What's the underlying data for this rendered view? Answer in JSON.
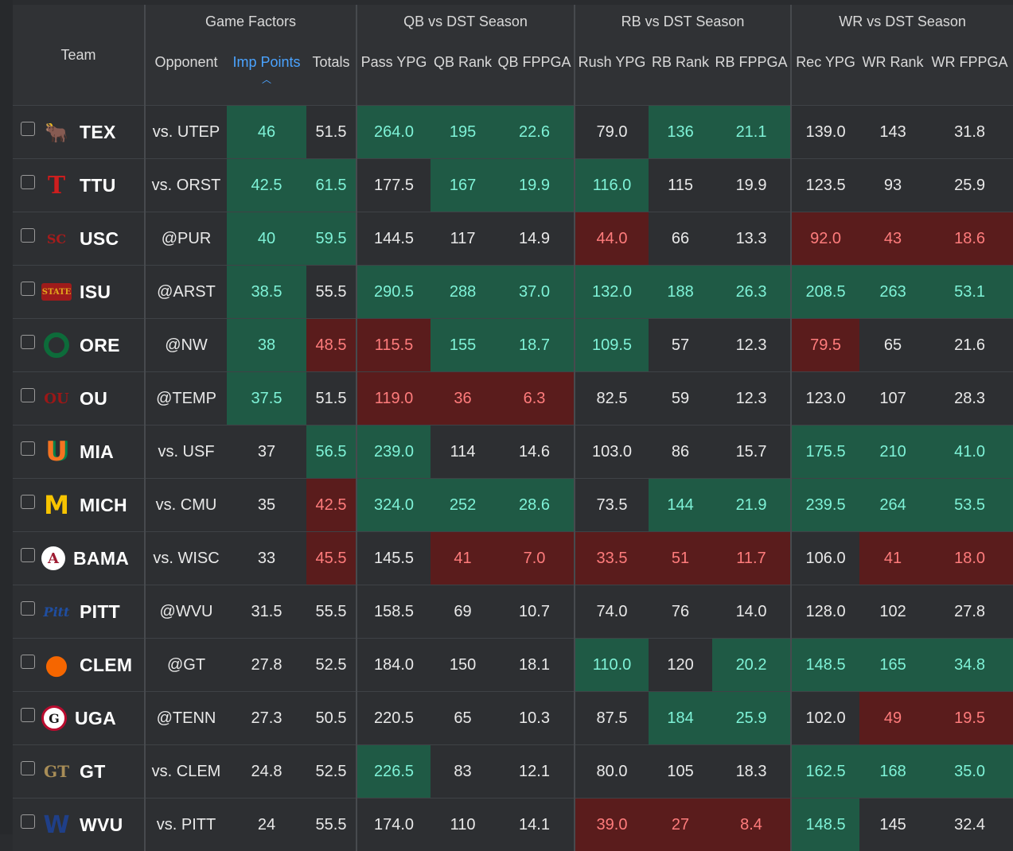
{
  "header": {
    "team": "Team",
    "groups": [
      "Game Factors",
      "QB vs DST Season",
      "RB vs DST Season",
      "WR vs DST Season"
    ],
    "columns": [
      "Opponent",
      "Imp Points",
      "Totals",
      "Pass YPG",
      "QB Rank",
      "QB FPPGA",
      "Rush YPG",
      "RB Rank",
      "RB FPPGA",
      "Rec YPG",
      "WR Rank",
      "WR FPPGA"
    ],
    "sort_column": "Imp Points",
    "sort_direction": "descending"
  },
  "colors": {
    "green_cell": "#1f5a45",
    "green_text": "#7ff3d8",
    "red_cell": "#5a1c1c",
    "red_text": "#ff7c7c",
    "active_header": "#4aa3ff"
  },
  "rows": [
    {
      "team": "TEX",
      "logo": "longhorn-logo-icon",
      "cells": [
        "vs. UTEP",
        "46",
        "51.5",
        "264.0",
        "195",
        "22.6",
        "79.0",
        "136",
        "21.1",
        "139.0",
        "143",
        "31.8"
      ],
      "tint": [
        "",
        "g",
        "",
        "g",
        "g",
        "g",
        "",
        "g",
        "g",
        "",
        "",
        ""
      ]
    },
    {
      "team": "TTU",
      "logo": "double-t-logo-icon",
      "cells": [
        "vs. ORST",
        "42.5",
        "61.5",
        "177.5",
        "167",
        "19.9",
        "116.0",
        "115",
        "19.9",
        "123.5",
        "93",
        "25.9"
      ],
      "tint": [
        "",
        "g",
        "g",
        "",
        "g",
        "g",
        "g",
        "",
        "",
        "",
        "",
        ""
      ]
    },
    {
      "team": "USC",
      "logo": "sc-logo-icon",
      "cells": [
        "@PUR",
        "40",
        "59.5",
        "144.5",
        "117",
        "14.9",
        "44.0",
        "66",
        "13.3",
        "92.0",
        "43",
        "18.6"
      ],
      "tint": [
        "",
        "g",
        "g",
        "",
        "",
        "",
        "r",
        "",
        "",
        "r",
        "r",
        "r"
      ]
    },
    {
      "team": "ISU",
      "logo": "isu-state-logo-icon",
      "cells": [
        "@ARST",
        "38.5",
        "55.5",
        "290.5",
        "288",
        "37.0",
        "132.0",
        "188",
        "26.3",
        "208.5",
        "263",
        "53.1"
      ],
      "tint": [
        "",
        "g",
        "",
        "g",
        "g",
        "g",
        "g",
        "g",
        "g",
        "g",
        "g",
        "g"
      ]
    },
    {
      "team": "ORE",
      "logo": "o-logo-icon",
      "cells": [
        "@NW",
        "38",
        "48.5",
        "115.5",
        "155",
        "18.7",
        "109.5",
        "57",
        "12.3",
        "79.5",
        "65",
        "21.6"
      ],
      "tint": [
        "",
        "g",
        "r",
        "r",
        "g",
        "g",
        "g",
        "",
        "",
        "r",
        "",
        ""
      ]
    },
    {
      "team": "OU",
      "logo": "ou-logo-icon",
      "cells": [
        "@TEMP",
        "37.5",
        "51.5",
        "119.0",
        "36",
        "6.3",
        "82.5",
        "59",
        "12.3",
        "123.0",
        "107",
        "28.3"
      ],
      "tint": [
        "",
        "g",
        "",
        "r",
        "r",
        "r",
        "",
        "",
        "",
        "",
        "",
        ""
      ]
    },
    {
      "team": "MIA",
      "logo": "u-logo-icon",
      "cells": [
        "vs. USF",
        "37",
        "56.5",
        "239.0",
        "114",
        "14.6",
        "103.0",
        "86",
        "15.7",
        "175.5",
        "210",
        "41.0"
      ],
      "tint": [
        "",
        "",
        "g",
        "g",
        "",
        "",
        "",
        "",
        "",
        "g",
        "g",
        "g"
      ]
    },
    {
      "team": "MICH",
      "logo": "block-m-logo-icon",
      "cells": [
        "vs. CMU",
        "35",
        "42.5",
        "324.0",
        "252",
        "28.6",
        "73.5",
        "144",
        "21.9",
        "239.5",
        "264",
        "53.5"
      ],
      "tint": [
        "",
        "",
        "r",
        "g",
        "g",
        "g",
        "",
        "g",
        "g",
        "g",
        "g",
        "g"
      ]
    },
    {
      "team": "BAMA",
      "logo": "alabama-a-logo-icon",
      "cells": [
        "vs. WISC",
        "33",
        "45.5",
        "145.5",
        "41",
        "7.0",
        "33.5",
        "51",
        "11.7",
        "106.0",
        "41",
        "18.0"
      ],
      "tint": [
        "",
        "",
        "r",
        "",
        "r",
        "r",
        "r",
        "r",
        "r",
        "",
        "r",
        "r"
      ]
    },
    {
      "team": "PITT",
      "logo": "pitt-script-logo-icon",
      "cells": [
        "@WVU",
        "31.5",
        "55.5",
        "158.5",
        "69",
        "10.7",
        "74.0",
        "76",
        "14.0",
        "128.0",
        "102",
        "27.8"
      ],
      "tint": [
        "",
        "",
        "",
        "",
        "",
        "",
        "",
        "",
        "",
        "",
        "",
        ""
      ]
    },
    {
      "team": "CLEM",
      "logo": "paw-logo-icon",
      "cells": [
        "@GT",
        "27.8",
        "52.5",
        "184.0",
        "150",
        "18.1",
        "110.0",
        "120",
        "20.2",
        "148.5",
        "165",
        "34.8"
      ],
      "tint": [
        "",
        "",
        "",
        "",
        "",
        "",
        "g",
        "",
        "g",
        "g",
        "g",
        "g"
      ]
    },
    {
      "team": "UGA",
      "logo": "g-logo-icon",
      "cells": [
        "@TENN",
        "27.3",
        "50.5",
        "220.5",
        "65",
        "10.3",
        "87.5",
        "184",
        "25.9",
        "102.0",
        "49",
        "19.5"
      ],
      "tint": [
        "",
        "",
        "",
        "",
        "",
        "",
        "",
        "g",
        "g",
        "",
        "r",
        "r"
      ]
    },
    {
      "team": "GT",
      "logo": "gt-logo-icon",
      "cells": [
        "vs. CLEM",
        "24.8",
        "52.5",
        "226.5",
        "83",
        "12.1",
        "80.0",
        "105",
        "18.3",
        "162.5",
        "168",
        "35.0"
      ],
      "tint": [
        "",
        "",
        "",
        "g",
        "",
        "",
        "",
        "",
        "",
        "g",
        "g",
        "g"
      ]
    },
    {
      "team": "WVU",
      "logo": "flying-wv-logo-icon",
      "cells": [
        "vs. PITT",
        "24",
        "55.5",
        "174.0",
        "110",
        "14.1",
        "39.0",
        "27",
        "8.4",
        "148.5",
        "145",
        "32.4"
      ],
      "tint": [
        "",
        "",
        "",
        "",
        "",
        "",
        "r",
        "r",
        "r",
        "g",
        "",
        ""
      ]
    }
  ]
}
